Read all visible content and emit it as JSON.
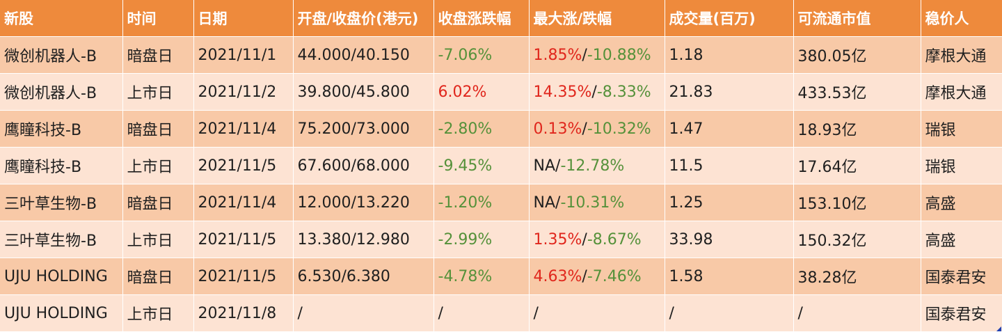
{
  "headers": [
    "新股",
    "时间",
    "日期",
    "开盘/收盘价(港元)",
    "收盘涨跌幅",
    "最大涨/跌幅",
    "成交量(百万)",
    "可流通市值",
    "稳价人"
  ],
  "rows": [
    {
      "name": "微创机器人-B",
      "session": "暗盘日",
      "date": "2021/11/1",
      "prices": "44.000/40.150",
      "close_change": "-7.06%",
      "close_color": "green",
      "max_up": "1.85%",
      "max_up_color": "red",
      "sep": "/",
      "max_down": "-10.88%",
      "volume": "1.18",
      "market_cap": "380.05亿",
      "stabilizer": "摩根大通"
    },
    {
      "name": "微创机器人-B",
      "session": "上市日",
      "date": "2021/11/2",
      "prices": "39.800/45.800",
      "close_change": "6.02%",
      "close_color": "red",
      "max_up": "14.35%",
      "max_up_color": "red",
      "sep": "/",
      "max_down": "-8.33%",
      "volume": "21.83",
      "market_cap": "433.53亿",
      "stabilizer": "摩根大通"
    },
    {
      "name": "鹰瞳科技-B",
      "session": "暗盘日",
      "date": "2021/11/4",
      "prices": "75.200/73.000",
      "close_change": "-2.80%",
      "close_color": "green",
      "max_up": "0.13%",
      "max_up_color": "red",
      "sep": "/",
      "max_down": "-10.32%",
      "volume": "1.47",
      "market_cap": "18.93亿",
      "stabilizer": "瑞银"
    },
    {
      "name": "鹰瞳科技-B",
      "session": "上市日",
      "date": "2021/11/5",
      "prices": "67.600/68.000",
      "close_change": "-9.45%",
      "close_color": "green",
      "max_up": "NA",
      "max_up_color": "dark",
      "sep": "/",
      "max_down": "-12.78%",
      "volume": "11.5",
      "market_cap": "17.64亿",
      "stabilizer": "瑞银"
    },
    {
      "name": "三叶草生物-B",
      "session": "暗盘日",
      "date": "2021/11/4",
      "prices": "12.000/13.220",
      "close_change": "-1.20%",
      "close_color": "green",
      "max_up": "NA",
      "max_up_color": "dark",
      "sep": "/",
      "max_down": "-10.31%",
      "volume": "1.25",
      "market_cap": "153.10亿",
      "stabilizer": "高盛"
    },
    {
      "name": "三叶草生物-B",
      "session": "上市日",
      "date": "2021/11/5",
      "prices": "13.380/12.980",
      "close_change": "-2.99%",
      "close_color": "green",
      "max_up": "1.35%",
      "max_up_color": "red",
      "sep": "/",
      "max_down": "-8.67%",
      "volume": "33.98",
      "market_cap": "150.32亿",
      "stabilizer": "高盛"
    },
    {
      "name": "UJU HOLDING",
      "session": "暗盘日",
      "date": "2021/11/5",
      "prices": "6.530/6.380",
      "close_change": "-4.78%",
      "close_color": "green",
      "max_up": "4.63%",
      "max_up_color": "red",
      "sep": "/",
      "max_down": "-7.46%",
      "volume": "1.58",
      "market_cap": "38.28亿",
      "stabilizer": "国泰君安"
    },
    {
      "name": "UJU HOLDING",
      "session": "上市日",
      "date": "2021/11/8",
      "prices": "/",
      "close_change": "/",
      "close_color": "dark",
      "max_up": "/",
      "max_up_color": "dark",
      "sep": "",
      "max_down": "",
      "volume": "/",
      "market_cap": "/",
      "stabilizer": "国泰君安"
    }
  ],
  "colors": {
    "header_bg": "#ee8a3c",
    "row_dark": "#f8c9a7",
    "row_light": "#fde3d3",
    "up_red": "#e0261c",
    "down_green": "#55913a"
  }
}
